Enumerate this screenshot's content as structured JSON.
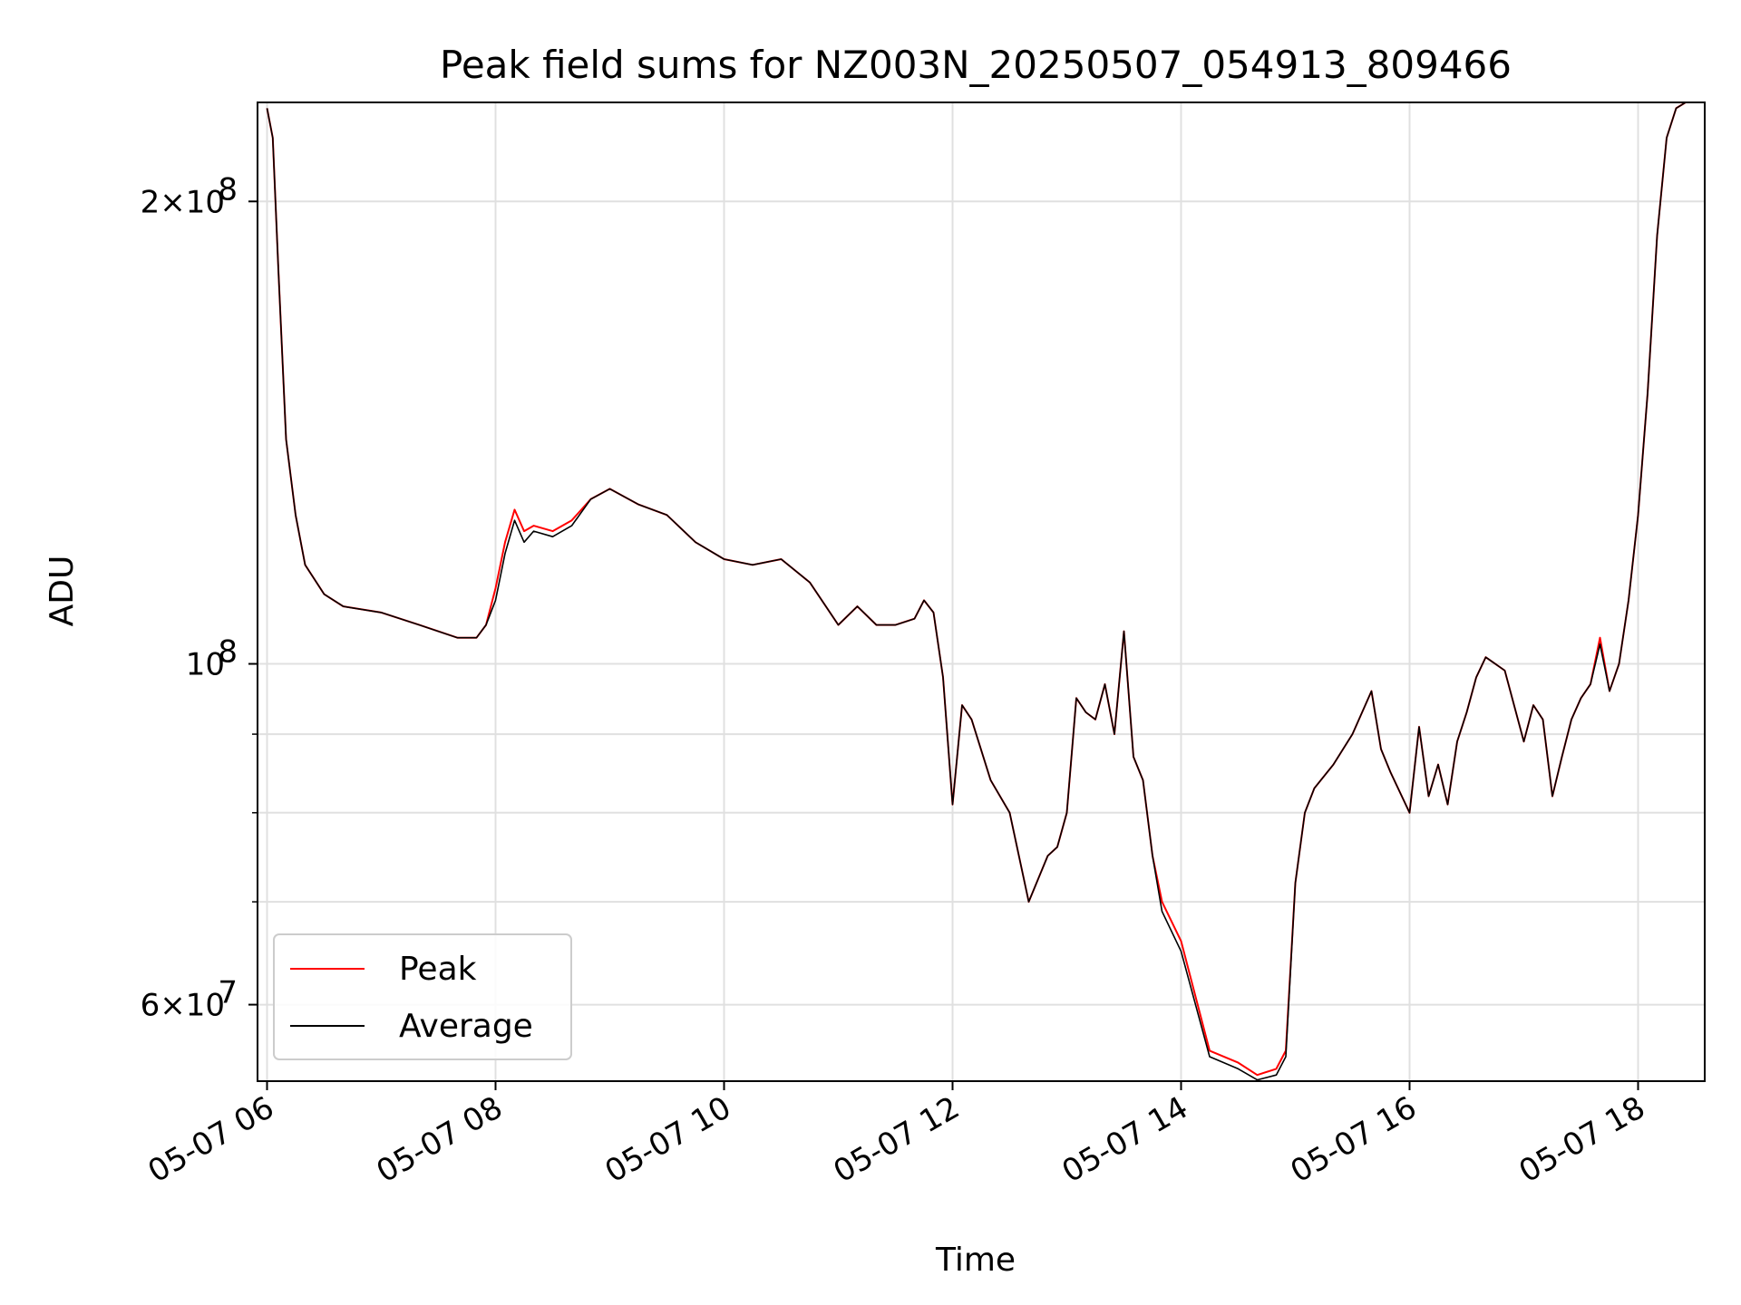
{
  "chart_data": {
    "type": "line",
    "title": "Peak field sums for NZ003N_20250507_054913_809466",
    "xlabel": "Time",
    "ylabel": "ADU",
    "x_range": [
      "05-07 05:55",
      "05-07 18:35"
    ],
    "y_scale": "log",
    "y_range": [
      53500000,
      232000000
    ],
    "grid": true,
    "legend_position": "lower-left",
    "x_ticks": [
      "05-07 06",
      "05-07 08",
      "05-07 10",
      "05-07 12",
      "05-07 14",
      "05-07 16",
      "05-07 18"
    ],
    "y_ticks": [
      {
        "label_base": "2",
        "label_exp": "8",
        "value": 200000000,
        "sci": true
      },
      {
        "label_base": "10",
        "label_exp": "8",
        "value": 100000000,
        "sci": false
      },
      {
        "label_base": "6",
        "label_exp": "7",
        "value": 60000000,
        "sci": true
      }
    ],
    "y_minor_ticks": [
      70000000,
      80000000,
      90000000
    ],
    "series": [
      {
        "name": "Peak",
        "color": "#ff0000",
        "x": [
          "05-07 06:00",
          "05-07 06:03",
          "05-07 06:06",
          "05-07 06:10",
          "05-07 06:15",
          "05-07 06:20",
          "05-07 06:30",
          "05-07 06:40",
          "05-07 07:00",
          "05-07 07:20",
          "05-07 07:40",
          "05-07 07:50",
          "05-07 07:55",
          "05-07 08:00",
          "05-07 08:05",
          "05-07 08:10",
          "05-07 08:15",
          "05-07 08:20",
          "05-07 08:30",
          "05-07 08:40",
          "05-07 08:50",
          "05-07 09:00",
          "05-07 09:15",
          "05-07 09:30",
          "05-07 09:45",
          "05-07 10:00",
          "05-07 10:15",
          "05-07 10:30",
          "05-07 10:45",
          "05-07 11:00",
          "05-07 11:10",
          "05-07 11:20",
          "05-07 11:30",
          "05-07 11:40",
          "05-07 11:45",
          "05-07 11:50",
          "05-07 11:55",
          "05-07 12:00",
          "05-07 12:05",
          "05-07 12:10",
          "05-07 12:20",
          "05-07 12:30",
          "05-07 12:40",
          "05-07 12:50",
          "05-07 12:55",
          "05-07 13:00",
          "05-07 13:05",
          "05-07 13:10",
          "05-07 13:15",
          "05-07 13:20",
          "05-07 13:25",
          "05-07 13:30",
          "05-07 13:35",
          "05-07 13:40",
          "05-07 13:45",
          "05-07 13:50",
          "05-07 14:00",
          "05-07 14:15",
          "05-07 14:30",
          "05-07 14:40",
          "05-07 14:50",
          "05-07 14:55",
          "05-07 15:00",
          "05-07 15:05",
          "05-07 15:10",
          "05-07 15:20",
          "05-07 15:30",
          "05-07 15:40",
          "05-07 15:45",
          "05-07 15:50",
          "05-07 16:00",
          "05-07 16:05",
          "05-07 16:10",
          "05-07 16:15",
          "05-07 16:20",
          "05-07 16:25",
          "05-07 16:30",
          "05-07 16:35",
          "05-07 16:40",
          "05-07 16:50",
          "05-07 17:00",
          "05-07 17:05",
          "05-07 17:10",
          "05-07 17:15",
          "05-07 17:20",
          "05-07 17:25",
          "05-07 17:30",
          "05-07 17:35",
          "05-07 17:40",
          "05-07 17:45",
          "05-07 17:50",
          "05-07 17:55",
          "05-07 18:00",
          "05-07 18:05",
          "05-07 18:10",
          "05-07 18:15",
          "05-07 18:20",
          "05-07 18:25"
        ],
        "y": [
          230000000,
          220000000,
          180000000,
          140000000,
          125000000,
          116000000,
          111000000,
          109000000,
          108000000,
          106000000,
          104000000,
          104000000,
          106000000,
          112000000,
          120000000,
          126000000,
          122000000,
          123000000,
          122000000,
          124000000,
          128000000,
          130000000,
          127000000,
          125000000,
          120000000,
          117000000,
          116000000,
          117000000,
          113000000,
          106000000,
          109000000,
          106000000,
          106000000,
          107000000,
          110000000,
          108000000,
          98000000,
          81000000,
          94000000,
          92000000,
          84000000,
          80000000,
          70000000,
          75000000,
          76000000,
          80000000,
          95000000,
          93000000,
          92000000,
          97000000,
          90000000,
          105000000,
          87000000,
          84000000,
          75000000,
          70000000,
          66000000,
          56000000,
          55000000,
          54000000,
          54500000,
          56000000,
          72000000,
          80000000,
          83000000,
          86000000,
          90000000,
          96000000,
          88000000,
          85000000,
          80000000,
          91000000,
          82000000,
          86000000,
          81000000,
          89000000,
          93000000,
          98000000,
          101000000,
          99000000,
          89000000,
          94000000,
          92000000,
          82000000,
          87000000,
          92000000,
          95000000,
          97000000,
          104000000,
          96000000,
          100000000,
          110000000,
          125000000,
          150000000,
          190000000,
          220000000,
          230000000,
          232000000
        ]
      },
      {
        "name": "Average",
        "color": "#000000",
        "x": [
          "05-07 06:00",
          "05-07 06:03",
          "05-07 06:06",
          "05-07 06:10",
          "05-07 06:15",
          "05-07 06:20",
          "05-07 06:30",
          "05-07 06:40",
          "05-07 07:00",
          "05-07 07:20",
          "05-07 07:40",
          "05-07 07:50",
          "05-07 07:55",
          "05-07 08:00",
          "05-07 08:05",
          "05-07 08:10",
          "05-07 08:15",
          "05-07 08:20",
          "05-07 08:30",
          "05-07 08:40",
          "05-07 08:50",
          "05-07 09:00",
          "05-07 09:15",
          "05-07 09:30",
          "05-07 09:45",
          "05-07 10:00",
          "05-07 10:15",
          "05-07 10:30",
          "05-07 10:45",
          "05-07 11:00",
          "05-07 11:10",
          "05-07 11:20",
          "05-07 11:30",
          "05-07 11:40",
          "05-07 11:45",
          "05-07 11:50",
          "05-07 11:55",
          "05-07 12:00",
          "05-07 12:05",
          "05-07 12:10",
          "05-07 12:20",
          "05-07 12:30",
          "05-07 12:40",
          "05-07 12:50",
          "05-07 12:55",
          "05-07 13:00",
          "05-07 13:05",
          "05-07 13:10",
          "05-07 13:15",
          "05-07 13:20",
          "05-07 13:25",
          "05-07 13:30",
          "05-07 13:35",
          "05-07 13:40",
          "05-07 13:45",
          "05-07 13:50",
          "05-07 14:00",
          "05-07 14:15",
          "05-07 14:30",
          "05-07 14:40",
          "05-07 14:50",
          "05-07 14:55",
          "05-07 15:00",
          "05-07 15:05",
          "05-07 15:10",
          "05-07 15:20",
          "05-07 15:30",
          "05-07 15:40",
          "05-07 15:45",
          "05-07 15:50",
          "05-07 16:00",
          "05-07 16:05",
          "05-07 16:10",
          "05-07 16:15",
          "05-07 16:20",
          "05-07 16:25",
          "05-07 16:30",
          "05-07 16:35",
          "05-07 16:40",
          "05-07 16:50",
          "05-07 17:00",
          "05-07 17:05",
          "05-07 17:10",
          "05-07 17:15",
          "05-07 17:20",
          "05-07 17:25",
          "05-07 17:30",
          "05-07 17:35",
          "05-07 17:40",
          "05-07 17:45",
          "05-07 17:50",
          "05-07 17:55",
          "05-07 18:00",
          "05-07 18:05",
          "05-07 18:10",
          "05-07 18:15",
          "05-07 18:20",
          "05-07 18:25"
        ],
        "y": [
          230000000,
          220000000,
          180000000,
          140000000,
          125000000,
          116000000,
          111000000,
          109000000,
          108000000,
          106000000,
          104000000,
          104000000,
          106000000,
          110000000,
          118000000,
          124000000,
          120000000,
          122000000,
          121000000,
          123000000,
          128000000,
          130000000,
          127000000,
          125000000,
          120000000,
          117000000,
          116000000,
          117000000,
          113000000,
          106000000,
          109000000,
          106000000,
          106000000,
          107000000,
          110000000,
          108000000,
          98000000,
          81000000,
          94000000,
          92000000,
          84000000,
          80000000,
          70000000,
          75000000,
          76000000,
          80000000,
          95000000,
          93000000,
          92000000,
          97000000,
          90000000,
          105000000,
          87000000,
          84000000,
          75000000,
          69000000,
          65000000,
          55500000,
          54500000,
          53600000,
          54000000,
          55500000,
          72000000,
          80000000,
          83000000,
          86000000,
          90000000,
          96000000,
          88000000,
          85000000,
          80000000,
          91000000,
          82000000,
          86000000,
          81000000,
          89000000,
          93000000,
          98000000,
          101000000,
          99000000,
          89000000,
          94000000,
          92000000,
          82000000,
          87000000,
          92000000,
          95000000,
          97000000,
          103000000,
          96000000,
          100000000,
          110000000,
          125000000,
          150000000,
          190000000,
          220000000,
          230000000,
          232000000
        ]
      }
    ]
  }
}
